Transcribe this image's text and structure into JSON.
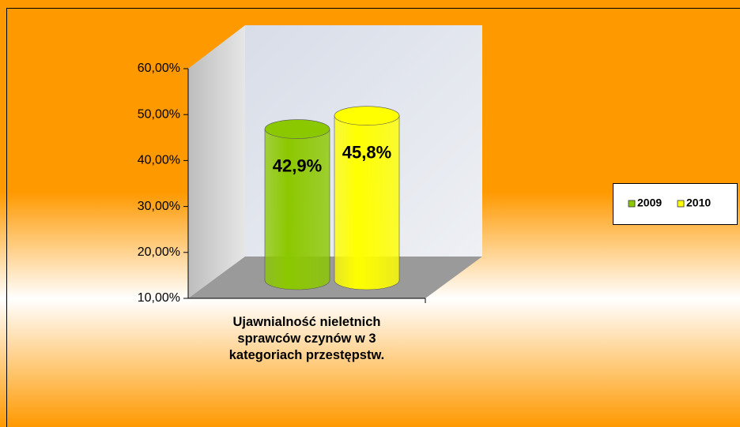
{
  "chart_data": {
    "type": "bar3d",
    "categories": [
      "Ujawnialność nieletnich sprawców czynów w 3 kategoriach przestępstw."
    ],
    "series": [
      {
        "name": "2009",
        "color": "#8cc800",
        "values": [
          42.9
        ],
        "value_labels": [
          "42,9%"
        ]
      },
      {
        "name": "2010",
        "color": "#ffff00",
        "values": [
          45.8
        ],
        "value_labels": [
          "45,8%"
        ]
      }
    ],
    "ylim": [
      10,
      60
    ],
    "yticks": [
      {
        "value": 10,
        "label": "10,00%"
      },
      {
        "value": 20,
        "label": "20,00%"
      },
      {
        "value": 30,
        "label": "30,00%"
      },
      {
        "value": 40,
        "label": "40,00%"
      },
      {
        "value": 50,
        "label": "50,00%"
      },
      {
        "value": 60,
        "label": "60,00%"
      }
    ],
    "legend": "right"
  }
}
